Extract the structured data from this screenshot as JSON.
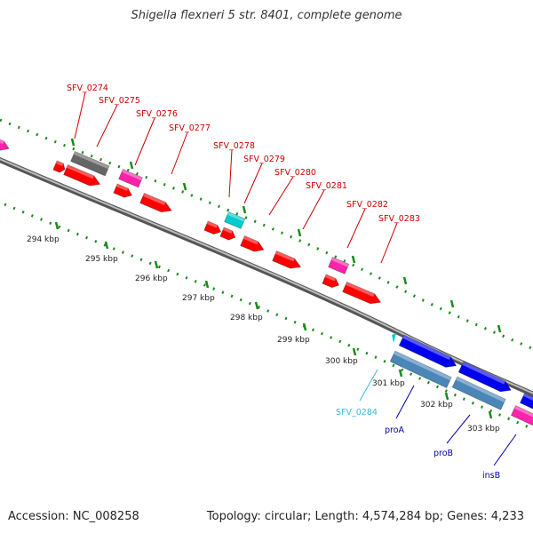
{
  "title": "Shigella flexneri 5 str. 8401, complete genome",
  "accession": "Accession: NC_008258",
  "topology": "Topology: circular; Length: 4,574,284 bp; Genes: 4,233",
  "colors": {
    "backbone": "#8a8a8a",
    "cds_red": "#ff0000",
    "cds_magenta": "#ff22aa",
    "cds_gray": "#666666",
    "cds_cyan": "#00cccc",
    "cds_blue": "#0000ee",
    "cds_steel": "#4a86b8",
    "label_red": "#cc0000",
    "label_cyan": "#33bbdd",
    "label_blue": "#0000aa",
    "tick_green": "#1a8a1a",
    "dot_green": "#1a8a1a"
  },
  "ticks": [
    "294 kbp",
    "295 kbp",
    "296 kbp",
    "297 kbp",
    "298 kbp",
    "299 kbp",
    "300 kbp",
    "301 kbp",
    "302 kbp",
    "303 kbp"
  ],
  "genes": [
    {
      "name": "SFV_0274",
      "color_key": "label_red"
    },
    {
      "name": "SFV_0275",
      "color_key": "label_red"
    },
    {
      "name": "SFV_0276",
      "color_key": "label_red"
    },
    {
      "name": "SFV_0277",
      "color_key": "label_red"
    },
    {
      "name": "SFV_0278",
      "color_key": "label_red"
    },
    {
      "name": "SFV_0279",
      "color_key": "label_red"
    },
    {
      "name": "SFV_0280",
      "color_key": "label_red"
    },
    {
      "name": "SFV_0281",
      "color_key": "label_red"
    },
    {
      "name": "SFV_0282",
      "color_key": "label_red"
    },
    {
      "name": "SFV_0283",
      "color_key": "label_red"
    },
    {
      "name": "SFV_0284",
      "color_key": "label_cyan"
    },
    {
      "name": "proA",
      "color_key": "label_blue"
    },
    {
      "name": "proB",
      "color_key": "label_blue"
    },
    {
      "name": "insB",
      "color_key": "label_blue"
    }
  ]
}
